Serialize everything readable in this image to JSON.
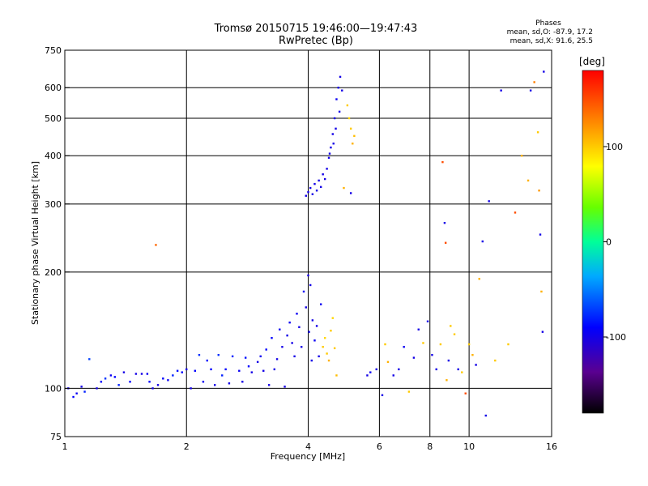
{
  "header": {
    "title_line1": "Tromsø 20150715 19:46:00—19:47:43",
    "title_line2": "RwPretec (Bp)"
  },
  "phase_box": {
    "heading": "Phases",
    "line_o": "mean, sd,O:  -87.9, 17.2",
    "line_x": "mean, sd,X:  91.6, 25.5"
  },
  "colorbar": {
    "unit_label": "[deg]",
    "range": [
      -180,
      180
    ],
    "ticks": [
      {
        "value": 100,
        "label": "100"
      },
      {
        "value": 0,
        "label": "0"
      },
      {
        "value": -100,
        "label": "-100"
      }
    ]
  },
  "chart_data": {
    "type": "scatter",
    "title": "Tromsø 20150715 19:46:00—19:47:43",
    "subtitle": "RwPretec (Bp)",
    "xlabel": "Frequency [MHz]",
    "ylabel": "Stationary phase Virtual Height [km]",
    "x_scale": "log",
    "y_scale": "log",
    "xlim": [
      1,
      16
    ],
    "ylim": [
      75,
      750
    ],
    "x_ticks": [
      1,
      2,
      4,
      6,
      8,
      10,
      16
    ],
    "y_ticks": [
      75,
      100,
      200,
      300,
      400,
      500,
      600,
      750
    ],
    "grid": true,
    "color_encoding": "phase [deg]",
    "points": [
      [
        1.02,
        100,
        -100
      ],
      [
        1.05,
        95,
        -90
      ],
      [
        1.07,
        97,
        -95
      ],
      [
        1.1,
        101,
        -100
      ],
      [
        1.12,
        98,
        -80
      ],
      [
        1.15,
        119,
        -70
      ],
      [
        1.2,
        100,
        -100
      ],
      [
        1.23,
        104,
        -90
      ],
      [
        1.26,
        106,
        -75
      ],
      [
        1.3,
        108,
        -95
      ],
      [
        1.33,
        107,
        -90
      ],
      [
        1.36,
        102,
        -80
      ],
      [
        1.4,
        110,
        -100
      ],
      [
        1.45,
        104,
        -90
      ],
      [
        1.5,
        109,
        -100
      ],
      [
        1.55,
        109,
        -100
      ],
      [
        1.6,
        109,
        -95
      ],
      [
        1.62,
        104,
        -90
      ],
      [
        1.65,
        100,
        -100
      ],
      [
        1.68,
        235,
        140
      ],
      [
        1.7,
        102,
        -100
      ],
      [
        1.75,
        106,
        -90
      ],
      [
        1.8,
        105,
        -95
      ],
      [
        1.85,
        108,
        -80
      ],
      [
        1.9,
        111,
        -85
      ],
      [
        1.95,
        110,
        -90
      ],
      [
        2.0,
        112,
        -100
      ],
      [
        2.05,
        100,
        -100
      ],
      [
        2.1,
        111,
        -90
      ],
      [
        2.15,
        122,
        -75
      ],
      [
        2.2,
        104,
        -95
      ],
      [
        2.25,
        118,
        -85
      ],
      [
        2.3,
        112,
        -90
      ],
      [
        2.35,
        102,
        -100
      ],
      [
        2.4,
        122,
        -75
      ],
      [
        2.45,
        108,
        -80
      ],
      [
        2.5,
        112,
        -90
      ],
      [
        2.55,
        103,
        -100
      ],
      [
        2.6,
        121,
        -80
      ],
      [
        2.7,
        111,
        -95
      ],
      [
        2.75,
        104,
        -100
      ],
      [
        2.8,
        120,
        -85
      ],
      [
        2.85,
        114,
        -90
      ],
      [
        2.9,
        110,
        -100
      ],
      [
        3.0,
        117,
        -100
      ],
      [
        3.05,
        121,
        -95
      ],
      [
        3.1,
        111,
        -100
      ],
      [
        3.15,
        126,
        -90
      ],
      [
        3.2,
        102,
        -100
      ],
      [
        3.25,
        135,
        -90
      ],
      [
        3.3,
        112,
        -100
      ],
      [
        3.35,
        119,
        -100
      ],
      [
        3.4,
        142,
        -95
      ],
      [
        3.45,
        128,
        -100
      ],
      [
        3.5,
        101,
        -100
      ],
      [
        3.55,
        137,
        -100
      ],
      [
        3.6,
        148,
        -95
      ],
      [
        3.65,
        131,
        -100
      ],
      [
        3.7,
        121,
        -100
      ],
      [
        3.75,
        156,
        -95
      ],
      [
        3.8,
        144,
        -100
      ],
      [
        3.85,
        128,
        -100
      ],
      [
        3.9,
        178,
        -95
      ],
      [
        3.95,
        162,
        -100
      ],
      [
        4.0,
        196,
        -100
      ],
      [
        4.02,
        140,
        -100
      ],
      [
        4.05,
        185,
        -100
      ],
      [
        4.08,
        118,
        -100
      ],
      [
        4.1,
        150,
        -100
      ],
      [
        4.15,
        133,
        -95
      ],
      [
        4.2,
        145,
        -100
      ],
      [
        4.25,
        121,
        -100
      ],
      [
        4.3,
        165,
        -95
      ],
      [
        4.35,
        128,
        100
      ],
      [
        4.4,
        135,
        95
      ],
      [
        4.45,
        123,
        100
      ],
      [
        4.5,
        118,
        110
      ],
      [
        4.55,
        141,
        100
      ],
      [
        4.6,
        152,
        95
      ],
      [
        4.65,
        127,
        100
      ],
      [
        4.7,
        108,
        105
      ],
      [
        3.95,
        315,
        -100
      ],
      [
        4.0,
        322,
        -100
      ],
      [
        4.05,
        330,
        -100
      ],
      [
        4.1,
        318,
        -100
      ],
      [
        4.15,
        338,
        -100
      ],
      [
        4.2,
        325,
        -100
      ],
      [
        4.25,
        345,
        -100
      ],
      [
        4.3,
        332,
        -100
      ],
      [
        4.35,
        358,
        -100
      ],
      [
        4.4,
        348,
        -100
      ],
      [
        4.45,
        370,
        -100
      ],
      [
        4.5,
        395,
        -100
      ],
      [
        4.55,
        420,
        -100
      ],
      [
        4.6,
        455,
        -100
      ],
      [
        4.65,
        500,
        -100
      ],
      [
        4.7,
        560,
        -95
      ],
      [
        4.75,
        600,
        -100
      ],
      [
        4.8,
        640,
        -100
      ],
      [
        4.85,
        590,
        -100
      ],
      [
        4.78,
        520,
        -100
      ],
      [
        4.68,
        470,
        -100
      ],
      [
        4.62,
        430,
        -100
      ],
      [
        4.52,
        405,
        -100
      ],
      [
        4.9,
        330,
        110
      ],
      [
        5.0,
        540,
        100
      ],
      [
        5.05,
        500,
        95
      ],
      [
        5.1,
        470,
        100
      ],
      [
        5.15,
        430,
        110
      ],
      [
        5.2,
        450,
        105
      ],
      [
        5.1,
        320,
        -100
      ],
      [
        5.6,
        108,
        -100
      ],
      [
        5.7,
        110,
        -95
      ],
      [
        5.9,
        112,
        -100
      ],
      [
        6.1,
        96,
        -100
      ],
      [
        6.2,
        130,
        100
      ],
      [
        6.3,
        117,
        110
      ],
      [
        6.5,
        108,
        -100
      ],
      [
        6.7,
        112,
        -100
      ],
      [
        6.9,
        128,
        -95
      ],
      [
        7.1,
        98,
        100
      ],
      [
        7.3,
        120,
        -100
      ],
      [
        7.5,
        142,
        -100
      ],
      [
        7.7,
        131,
        100
      ],
      [
        7.9,
        149,
        -100
      ],
      [
        8.1,
        122,
        -100
      ],
      [
        8.3,
        112,
        -100
      ],
      [
        8.5,
        130,
        100
      ],
      [
        8.6,
        385,
        150
      ],
      [
        8.7,
        268,
        -100
      ],
      [
        8.75,
        238,
        150
      ],
      [
        8.8,
        105,
        110
      ],
      [
        8.9,
        118,
        -100
      ],
      [
        9.0,
        145,
        100
      ],
      [
        9.2,
        138,
        100
      ],
      [
        9.4,
        112,
        -100
      ],
      [
        9.6,
        110,
        100
      ],
      [
        9.8,
        97,
        150
      ],
      [
        10.0,
        130,
        100
      ],
      [
        10.2,
        122,
        110
      ],
      [
        10.4,
        115,
        -100
      ],
      [
        10.6,
        192,
        110
      ],
      [
        10.8,
        240,
        -100
      ],
      [
        11.0,
        85,
        -100
      ],
      [
        11.2,
        305,
        -100
      ],
      [
        11.6,
        118,
        100
      ],
      [
        12.0,
        590,
        -100
      ],
      [
        12.5,
        130,
        100
      ],
      [
        13.0,
        285,
        150
      ],
      [
        13.5,
        400,
        110
      ],
      [
        14.0,
        345,
        110
      ],
      [
        14.2,
        590,
        -100
      ],
      [
        14.5,
        620,
        130
      ],
      [
        14.8,
        460,
        100
      ],
      [
        14.9,
        325,
        120
      ],
      [
        15.0,
        250,
        -100
      ],
      [
        15.1,
        178,
        110
      ],
      [
        15.2,
        140,
        -100
      ],
      [
        15.3,
        660,
        -100
      ]
    ]
  }
}
